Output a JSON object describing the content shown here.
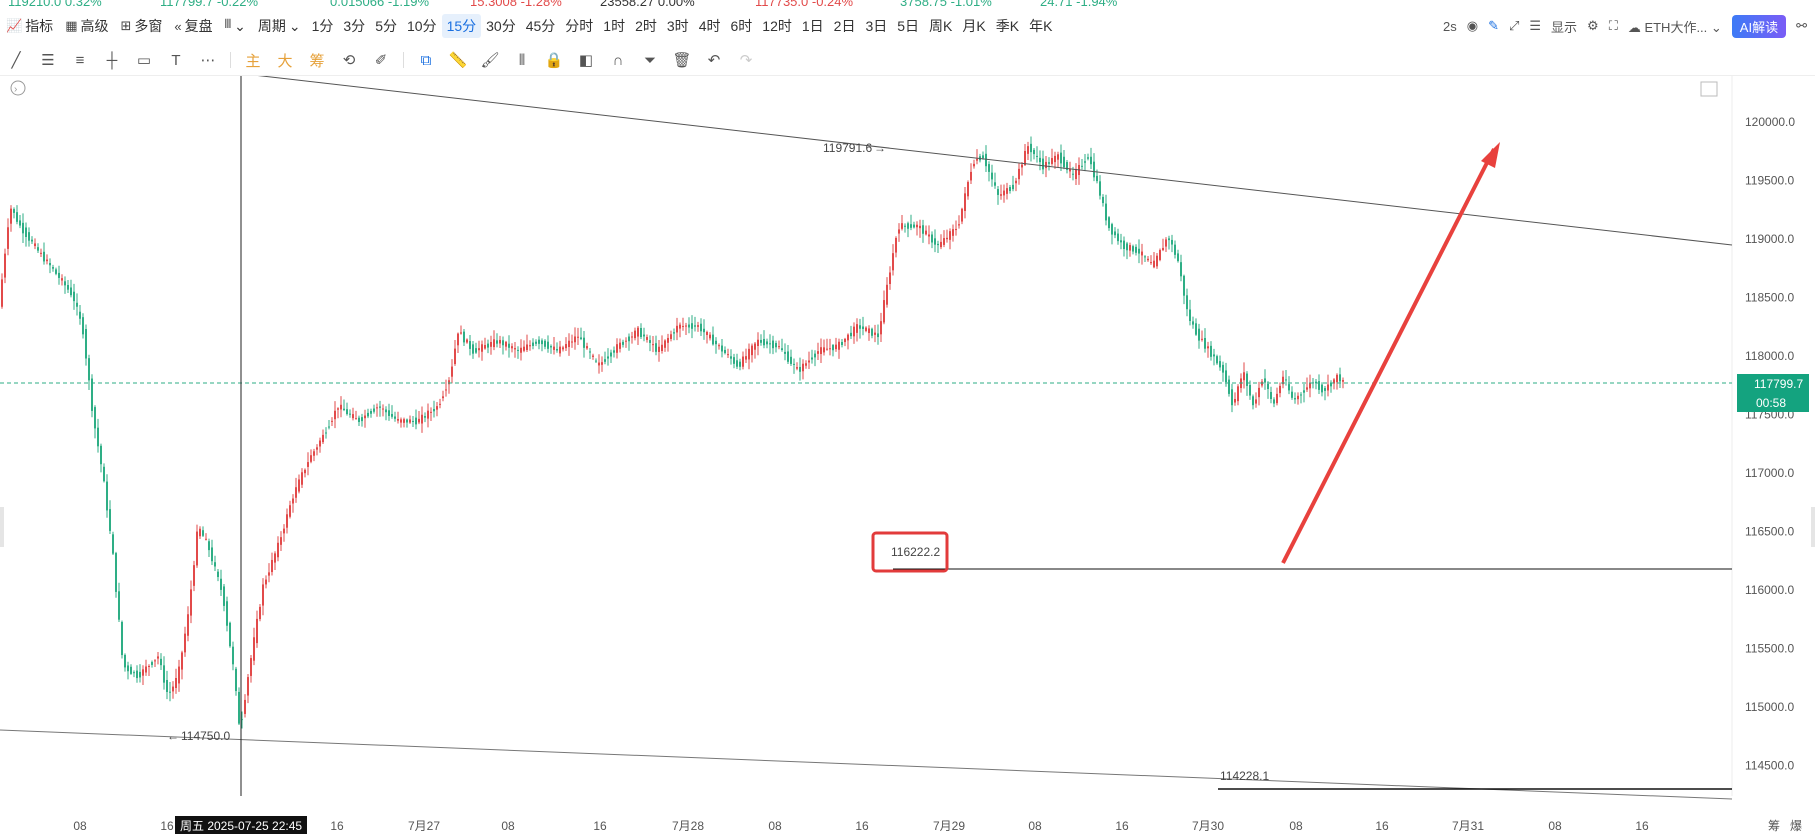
{
  "tickers": [
    {
      "text": "119210.0  0.32%",
      "color": "#2eae85"
    },
    {
      "text": "117799.7  -0.22%",
      "color": "#2eae85"
    },
    {
      "text": "0.015066  -1.19%",
      "color": "#2eae85"
    },
    {
      "text": "15.3008  -1.28%",
      "color": "#e24a4a"
    },
    {
      "text": "23558.27  0.00%",
      "color": "#333333"
    },
    {
      "text": "117735.0  -0.24%",
      "color": "#e24a4a"
    },
    {
      "text": "3758.75  -1.01%",
      "color": "#2eae85"
    },
    {
      "text": "24.71  -1.94%",
      "color": "#2eae85"
    }
  ],
  "toolbar": {
    "indicators": "指标",
    "advanced": "高级",
    "multi_window": "多窗",
    "replay": "复盘",
    "period_label": "周期",
    "periods": [
      "1分",
      "3分",
      "5分",
      "10分",
      "15分",
      "30分",
      "45分",
      "分时",
      "1时",
      "2时",
      "3时",
      "4时",
      "6时",
      "12时",
      "1日",
      "2日",
      "3日",
      "5日",
      "周K",
      "月K",
      "季K",
      "年K"
    ],
    "active_period": "15分",
    "refresh": "2s",
    "display": "显示",
    "symbol_select": "ETH大作...",
    "ai_button": "AI解读"
  },
  "drawtools": {
    "main": "主",
    "big": "大",
    "chip": "筹"
  },
  "chart": {
    "y_axis_labels": [
      "120000.0",
      "119500.0",
      "119000.0",
      "118500.0",
      "118000.0",
      "117500.0",
      "117000.0",
      "116500.0",
      "116000.0",
      "115500.0",
      "115000.0",
      "114500.0"
    ],
    "current_price": "117799.7",
    "countdown": "00:58",
    "x_axis_labels": [
      "08",
      "16",
      "16",
      "7月27",
      "08",
      "16",
      "7月28",
      "08",
      "16",
      "7月29",
      "08",
      "16",
      "7月30",
      "08",
      "16",
      "7月31",
      "08",
      "16"
    ],
    "crosshair_time": "周五 2025-07-25 22:45",
    "high_label": "119791.6",
    "low_label": "114750.0",
    "marked_level": "116222.2",
    "support_level": "114228.1",
    "bottom_right": [
      "筹",
      "爆"
    ],
    "colors": {
      "up": "#e24a4a",
      "down": "#2eae85",
      "arrow": "#e8413d"
    }
  }
}
